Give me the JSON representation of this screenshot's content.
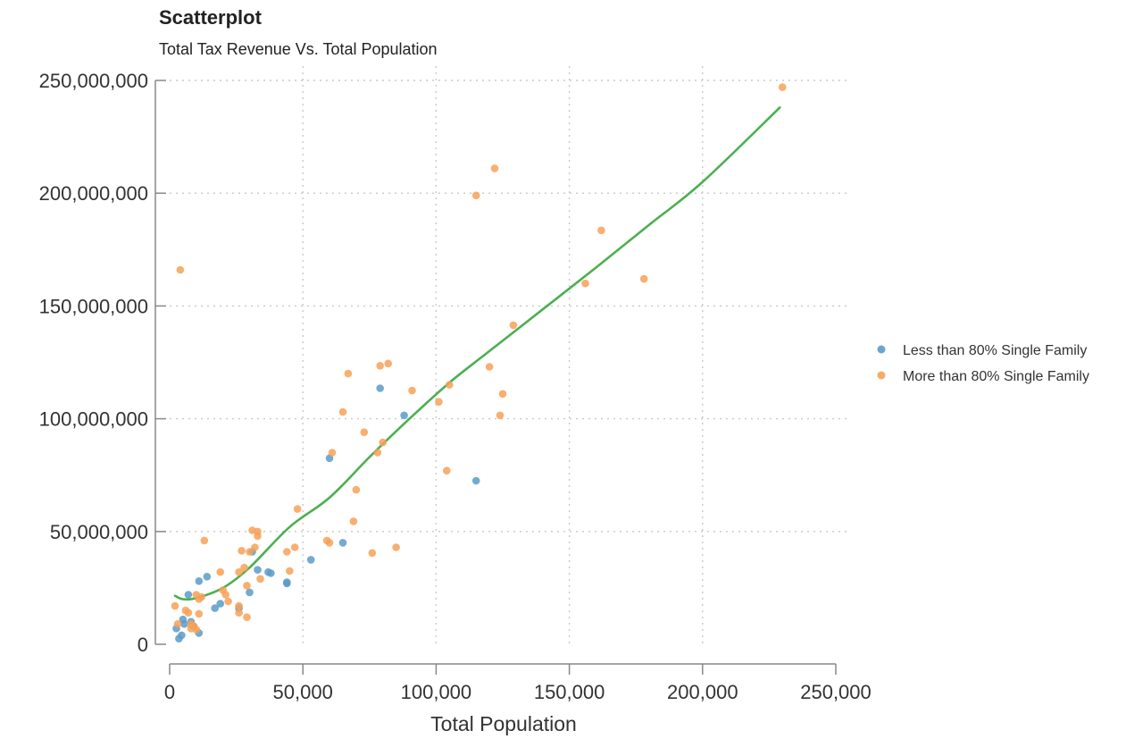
{
  "chart_data": {
    "type": "scatter",
    "title": "Scatterplot",
    "subtitle": "Total Tax Revenue Vs. Total Population",
    "xlabel": "Total Population",
    "ylabel": "",
    "xlim": [
      0,
      250000
    ],
    "ylim": [
      0,
      250000000
    ],
    "x_ticks": [
      "0",
      "50,000",
      "100,000",
      "150,000",
      "200,000",
      "250,000"
    ],
    "y_ticks": [
      "0",
      "50,000,000",
      "100,000,000",
      "150,000,000",
      "200,000,000",
      "250,000,000"
    ],
    "grid": true,
    "legend_position": "right",
    "colors": {
      "less": "#5b9bc8",
      "more": "#f7a157",
      "trend": "#4caf50"
    },
    "series": [
      {
        "name": "Less than 80% Single Family",
        "color": "#5b9bc8",
        "points": [
          [
            2500,
            7000
          ],
          [
            3500,
            2500
          ],
          [
            4500,
            4000
          ],
          [
            5000,
            11000
          ],
          [
            5500,
            9000
          ],
          [
            7000,
            22000
          ],
          [
            8000,
            10000
          ],
          [
            9000,
            8000
          ],
          [
            11000,
            5000
          ],
          [
            11000,
            28000
          ],
          [
            14000,
            30000
          ],
          [
            17000,
            16000
          ],
          [
            19000,
            18000
          ],
          [
            26000,
            16000
          ],
          [
            30000,
            23000
          ],
          [
            31000,
            41000
          ],
          [
            33000,
            33000
          ],
          [
            37000,
            32000
          ],
          [
            38000,
            31500
          ],
          [
            44000,
            27500
          ],
          [
            44000,
            27000
          ],
          [
            53000,
            37500
          ],
          [
            60000,
            82500
          ],
          [
            65000,
            45000
          ],
          [
            79000,
            113500
          ],
          [
            88000,
            101500
          ],
          [
            115000,
            72500
          ]
        ]
      },
      {
        "name": "More than 80% Single Family",
        "color": "#f7a157",
        "points": [
          [
            2000,
            17000
          ],
          [
            3000,
            9000
          ],
          [
            4000,
            166000
          ],
          [
            6000,
            15000
          ],
          [
            7000,
            14000
          ],
          [
            8000,
            9000
          ],
          [
            8000,
            7000
          ],
          [
            9000,
            8000
          ],
          [
            10000,
            6500
          ],
          [
            10000,
            22000
          ],
          [
            11000,
            13500
          ],
          [
            11000,
            20000
          ],
          [
            12000,
            21000
          ],
          [
            13000,
            46000
          ],
          [
            19000,
            32000
          ],
          [
            20000,
            24000
          ],
          [
            21000,
            22000
          ],
          [
            22000,
            19000
          ],
          [
            26000,
            32000
          ],
          [
            26000,
            14000
          ],
          [
            26000,
            17000
          ],
          [
            27000,
            41500
          ],
          [
            28000,
            34000
          ],
          [
            29000,
            12000
          ],
          [
            29000,
            26000
          ],
          [
            30000,
            41000
          ],
          [
            31000,
            50500
          ],
          [
            32000,
            43000
          ],
          [
            33000,
            48000
          ],
          [
            33000,
            50000
          ],
          [
            34000,
            29000
          ],
          [
            44000,
            41000
          ],
          [
            45000,
            32500
          ],
          [
            47000,
            43000
          ],
          [
            48000,
            60000
          ],
          [
            59000,
            46000
          ],
          [
            60000,
            45000
          ],
          [
            61000,
            85000
          ],
          [
            65000,
            103000
          ],
          [
            67000,
            120000
          ],
          [
            69000,
            54500
          ],
          [
            70000,
            68500
          ],
          [
            73000,
            94000
          ],
          [
            76000,
            40500
          ],
          [
            78000,
            85000
          ],
          [
            79000,
            123500
          ],
          [
            80000,
            89500
          ],
          [
            82000,
            124500
          ],
          [
            85000,
            43000
          ],
          [
            91000,
            112500
          ],
          [
            101000,
            107500
          ],
          [
            104000,
            77000
          ],
          [
            105000,
            115000
          ],
          [
            115000,
            199000
          ],
          [
            120000,
            123000
          ],
          [
            122000,
            211000
          ],
          [
            124000,
            101500
          ],
          [
            125000,
            111000
          ],
          [
            129000,
            141500
          ],
          [
            156000,
            160000
          ],
          [
            162000,
            183500
          ],
          [
            178000,
            162000
          ],
          [
            230000,
            247000
          ]
        ]
      }
    ],
    "trendline": {
      "color": "#4caf50",
      "points": [
        [
          2000,
          21500
        ],
        [
          5000,
          20000
        ],
        [
          10000,
          20500
        ],
        [
          20000,
          25000
        ],
        [
          30000,
          34000
        ],
        [
          45000,
          52000
        ],
        [
          60000,
          65000
        ],
        [
          75000,
          83000
        ],
        [
          90000,
          100000
        ],
        [
          105000,
          116000
        ],
        [
          120000,
          130000
        ],
        [
          140000,
          148500
        ],
        [
          160000,
          167000
        ],
        [
          180000,
          186000
        ],
        [
          200000,
          205000
        ],
        [
          229000,
          238000
        ]
      ]
    }
  }
}
